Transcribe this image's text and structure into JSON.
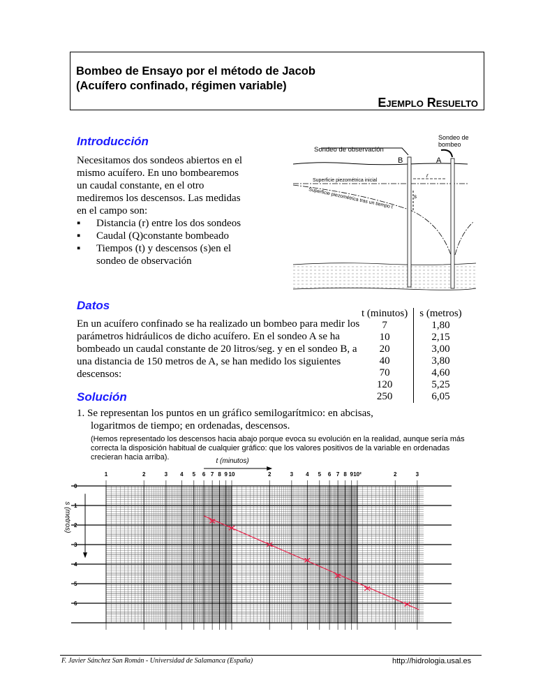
{
  "title": {
    "line1": "Bombeo de Ensayo por el método de Jacob",
    "line2": "(Acuífero confinado, régimen variable)",
    "subtitle": "Ejemplo Resuelto"
  },
  "intro": {
    "heading": "Introducción",
    "text": "Necesitamos dos sondeos abiertos en el mismo acuífero. En uno bombearemos un caudal constante, en el otro mediremos los descensos. Las medidas en el campo son:",
    "bullets": [
      "Distancia (r) entre los dos sondeos",
      "Caudal (Q)constante bombeado",
      "Tiempos (t) y descensos (s)en el sondeo de observación"
    ]
  },
  "diagram": {
    "obs_label": "Sondeo de observación",
    "pump_label_1": "Sondeo de",
    "pump_label_2": "bombeo",
    "well_b": "B",
    "well_a": "A",
    "initial_surface": "Superficie piezométrica inicial",
    "later_surface": "Superficie piezométrica tras un tiempo t",
    "r": "r",
    "s": "s"
  },
  "datos": {
    "heading": "Datos",
    "text": "En un acuífero confinado se ha realizado un bombeo para medir los parámetros hidráulicos de dicho acuífero. En el sondeo A se ha bombeado un caudal constante de 20 litros/seg. y en el sondeo B, a una distancia de 150 metros de A, se han medido los siguientes descensos:",
    "table": {
      "headers": [
        "t (minutos)",
        "s (metros)"
      ],
      "rows": [
        [
          "7",
          "1,80"
        ],
        [
          "10",
          "2,15"
        ],
        [
          "20",
          "3,00"
        ],
        [
          "40",
          "3,80"
        ],
        [
          "70",
          "4,60"
        ],
        [
          "120",
          "5,25"
        ],
        [
          "250",
          "6,05"
        ]
      ]
    }
  },
  "solucion": {
    "heading": "Solución",
    "step1": "1. Se representan los puntos en un gráfico semilogarítmico: en abcisas, logaritmos de tiempo; en ordenadas, descensos.",
    "note": "(Hemos representado los descensos hacia abajo porque evoca su evolución en la realidad, aunque sería más correcta la disposición habitual de cualquier gráfico: que los valores positivos de la variable en ordenadas crecieran hacia arriba)."
  },
  "chart_data": {
    "type": "scatter",
    "xlabel": "t  (minutos)",
    "ylabel": "s  (metros)",
    "x_scale": "log",
    "xlim": [
      1,
      350
    ],
    "ylim": [
      0,
      7
    ],
    "y_inverted": true,
    "grid": true,
    "x_tick_labels": [
      "1",
      "2",
      "3",
      "4",
      "5",
      "6",
      "7",
      "8",
      "9",
      "10",
      "2",
      "3",
      "4",
      "5",
      "6",
      "7",
      "8",
      "9",
      "10²",
      "2",
      "3"
    ],
    "y_tick_labels": [
      "0",
      "1",
      "2",
      "3",
      "4",
      "5",
      "6"
    ],
    "points": {
      "t": [
        7,
        10,
        20,
        40,
        70,
        120,
        250
      ],
      "s": [
        1.8,
        2.15,
        3.0,
        3.8,
        4.6,
        5.25,
        6.05
      ]
    },
    "fit_line": {
      "t": [
        6,
        310
      ],
      "s": [
        1.53,
        6.33
      ]
    },
    "point_color": "#e8234a",
    "line_color": "#e8234a"
  },
  "footer": {
    "author": "F. Javier Sánchez San Román - Universidad de Salamanca (España)",
    "url": "http://hidrologia.usal.es"
  }
}
